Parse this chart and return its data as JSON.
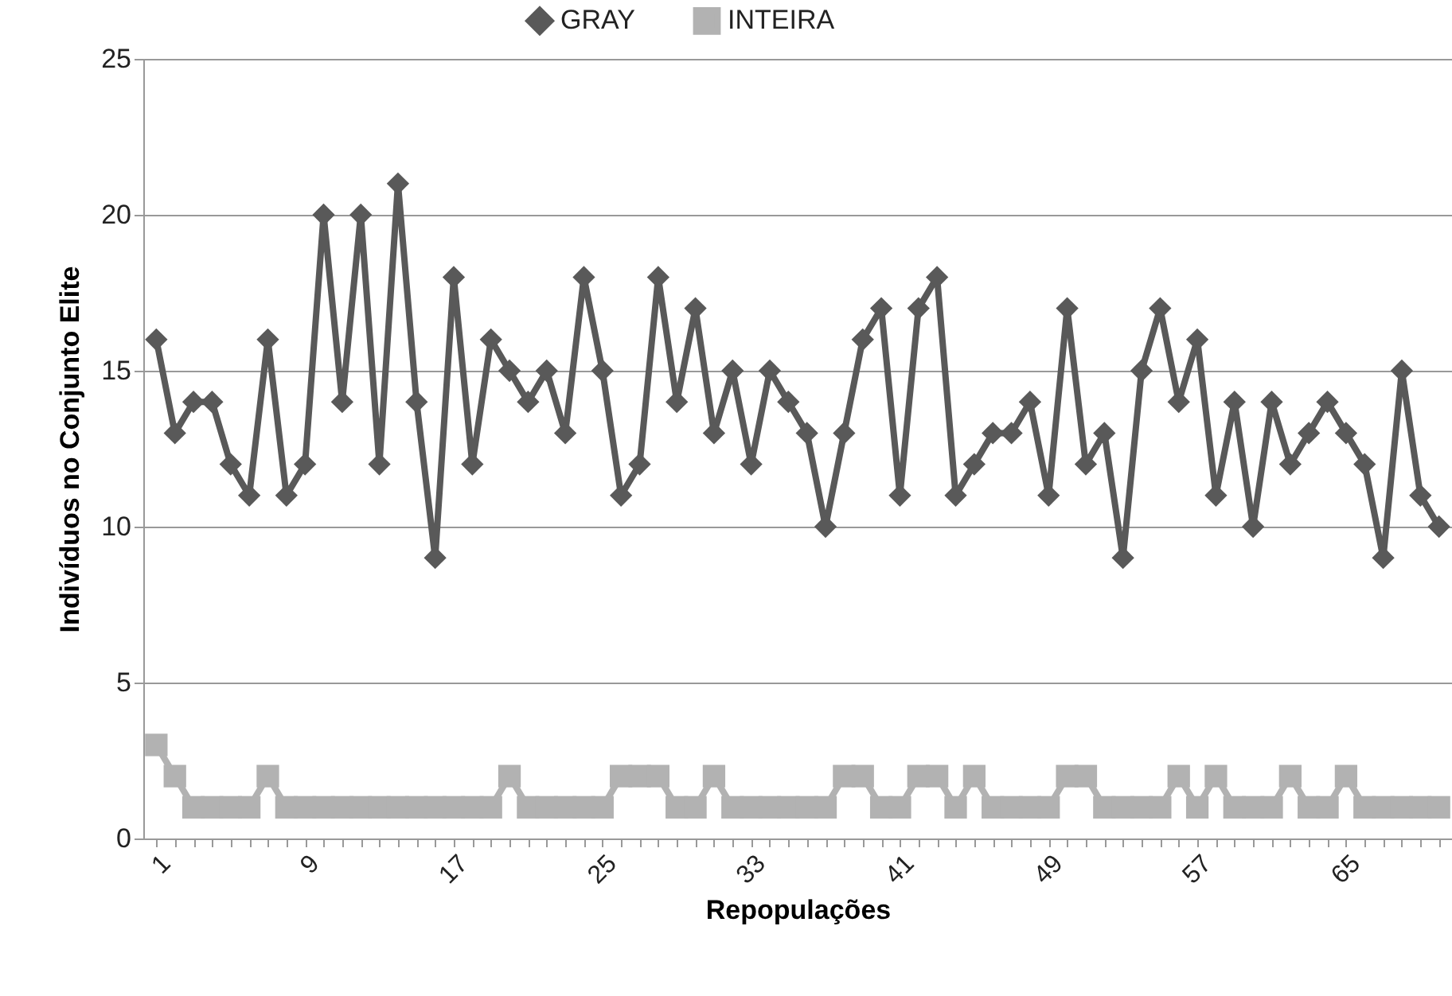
{
  "chart_data": {
    "type": "line",
    "xlabel": "Repopulações",
    "ylabel": "Indivíduos no Conjunto Elite",
    "categories": [
      "1",
      null,
      null,
      null,
      null,
      null,
      null,
      null,
      "9",
      null,
      null,
      null,
      null,
      null,
      null,
      null,
      "17",
      null,
      null,
      null,
      null,
      null,
      null,
      null,
      "25",
      null,
      null,
      null,
      null,
      null,
      null,
      null,
      "33",
      null,
      null,
      null,
      null,
      null,
      null,
      null,
      "41",
      null,
      null,
      null,
      null,
      null,
      null,
      null,
      "49",
      null,
      null,
      null,
      null,
      null,
      null,
      null,
      "57",
      null,
      null,
      null,
      null,
      null,
      null,
      null,
      "65",
      null,
      null,
      null,
      null,
      null
    ],
    "series": [
      {
        "name": "GRAY",
        "color": "#595959",
        "marker": "diamond",
        "values": [
          16,
          13,
          14,
          14,
          12,
          11,
          16,
          11,
          12,
          20,
          14,
          20,
          12,
          21,
          14,
          9,
          18,
          12,
          16,
          15,
          14,
          15,
          13,
          18,
          15,
          11,
          12,
          18,
          14,
          17,
          13,
          15,
          12,
          15,
          14,
          13,
          10,
          13,
          16,
          17,
          11,
          17,
          18,
          11,
          12,
          13,
          13,
          14,
          11,
          17,
          12,
          13,
          9,
          15,
          17,
          14,
          16,
          11,
          14,
          10,
          14,
          12,
          13,
          14,
          13,
          12,
          9,
          15,
          11,
          10
        ]
      },
      {
        "name": "INTEIRA",
        "color": "#b2b2b2",
        "marker": "square",
        "values": [
          3,
          2,
          1,
          1,
          1,
          1,
          2,
          1,
          1,
          1,
          1,
          1,
          1,
          1,
          1,
          1,
          1,
          1,
          1,
          2,
          1,
          1,
          1,
          1,
          1,
          2,
          2,
          2,
          1,
          1,
          2,
          1,
          1,
          1,
          1,
          1,
          1,
          2,
          2,
          1,
          1,
          2,
          2,
          1,
          2,
          1,
          1,
          1,
          1,
          2,
          2,
          1,
          1,
          1,
          1,
          2,
          1,
          2,
          1,
          1,
          1,
          2,
          1,
          1,
          2,
          1,
          1,
          1,
          1,
          1
        ]
      }
    ],
    "ylim": [
      0,
      25
    ],
    "yticks": [
      0,
      5,
      10,
      15,
      20,
      25
    ],
    "grid": "y",
    "legend": "top"
  }
}
